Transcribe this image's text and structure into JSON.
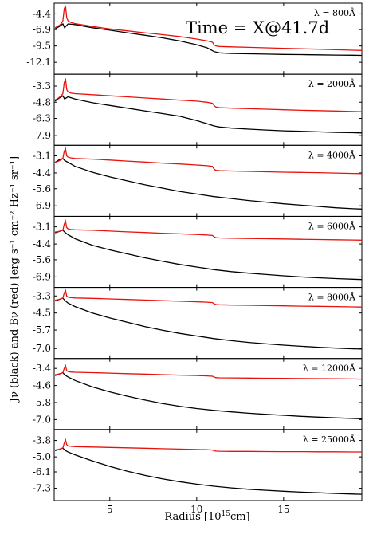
{
  "chart_data": {
    "type": "line",
    "title": "Time = X@41.7d",
    "xlabel": "Radius [10",
    "xlabel_sup": "15",
    "xlabel_tail": "cm]",
    "ylabel": "Jν (black) and Bν (red) [erg s⁻¹ cm⁻² Hz⁻¹ sr⁻¹]",
    "xlim": [
      1.8,
      19.5
    ],
    "xticks": [
      5,
      10,
      15
    ],
    "grid": false,
    "series_colors": {
      "J": "#000000",
      "B": "#e8120c"
    },
    "panels": [
      {
        "label": "λ = 800Å",
        "ylim": [
          -14.0,
          -2.7
        ],
        "yticks": [
          "-4.4",
          "-6.9",
          "-9.5",
          "-12.1"
        ],
        "ytick_values": [
          -4.4,
          -6.9,
          -9.5,
          -12.1
        ],
        "B": {
          "x": [
            1.85,
            2.05,
            2.2,
            2.3,
            2.38,
            2.45,
            2.52,
            2.6,
            2.75,
            3,
            4,
            5,
            6,
            7,
            8,
            9,
            10,
            10.6,
            10.9,
            11.0,
            11.1,
            11.3,
            12,
            13,
            14,
            15,
            16,
            17,
            18,
            19,
            19.5
          ],
          "y": [
            -6.6,
            -6.3,
            -6.0,
            -5.5,
            -3.6,
            -3.1,
            -5.0,
            -5.5,
            -5.75,
            -5.95,
            -6.4,
            -6.8,
            -7.1,
            -7.4,
            -7.7,
            -8.0,
            -8.4,
            -8.7,
            -8.9,
            -9.3,
            -9.5,
            -9.58,
            -9.65,
            -9.72,
            -9.8,
            -9.88,
            -9.95,
            -10.02,
            -10.1,
            -10.18,
            -10.22
          ]
        },
        "J": {
          "x": [
            1.85,
            2.1,
            2.3,
            2.4,
            2.6,
            3,
            4,
            5,
            6,
            7,
            8,
            9,
            10,
            10.6,
            11.0,
            11.3,
            12,
            13,
            14,
            15,
            16,
            17,
            18,
            19,
            19.5
          ],
          "y": [
            -6.8,
            -6.4,
            -6.0,
            -6.6,
            -6.0,
            -6.1,
            -6.6,
            -7.0,
            -7.4,
            -7.8,
            -8.2,
            -8.7,
            -9.3,
            -9.8,
            -10.4,
            -10.6,
            -10.7,
            -10.75,
            -10.8,
            -10.85,
            -10.88,
            -10.92,
            -10.95,
            -10.98,
            -11.0
          ]
        }
      },
      {
        "label": "λ = 2000Å",
        "ylim": [
          -8.8,
          -2.2
        ],
        "yticks": [
          "-3.3",
          "-4.8",
          "-6.3",
          "-7.9"
        ],
        "ytick_values": [
          -3.3,
          -4.8,
          -6.3,
          -7.9
        ],
        "B": {
          "x": [
            1.85,
            2.05,
            2.2,
            2.3,
            2.38,
            2.45,
            2.52,
            2.6,
            2.75,
            3,
            4,
            5,
            6,
            7,
            8,
            9,
            10,
            10.6,
            10.9,
            11.0,
            11.1,
            11.3,
            12,
            13,
            14,
            15,
            16,
            17,
            18,
            19,
            19.5
          ],
          "y": [
            -4.6,
            -4.4,
            -4.2,
            -4.0,
            -3.0,
            -2.6,
            -3.6,
            -3.85,
            -3.95,
            -4.0,
            -4.1,
            -4.2,
            -4.3,
            -4.4,
            -4.5,
            -4.6,
            -4.7,
            -4.8,
            -4.9,
            -5.1,
            -5.25,
            -5.3,
            -5.35,
            -5.4,
            -5.45,
            -5.5,
            -5.55,
            -5.58,
            -5.62,
            -5.66,
            -5.68
          ]
        },
        "J": {
          "x": [
            1.85,
            2.1,
            2.3,
            2.4,
            2.6,
            3,
            4,
            5,
            6,
            7,
            8,
            9,
            10,
            10.6,
            11.0,
            11.3,
            12,
            13,
            14,
            15,
            16,
            17,
            18,
            19,
            19.5
          ],
          "y": [
            -4.7,
            -4.4,
            -4.2,
            -4.5,
            -4.3,
            -4.5,
            -4.85,
            -5.1,
            -5.35,
            -5.6,
            -5.85,
            -6.1,
            -6.5,
            -6.8,
            -7.0,
            -7.1,
            -7.2,
            -7.3,
            -7.38,
            -7.45,
            -7.5,
            -7.55,
            -7.6,
            -7.63,
            -7.65
          ]
        }
      },
      {
        "label": "λ = 4000Å",
        "ylim": [
          -7.7,
          -2.3
        ],
        "yticks": [
          "-3.1",
          "-4.4",
          "-5.6",
          "-6.9"
        ],
        "ytick_values": [
          -3.1,
          -4.4,
          -5.6,
          -6.9
        ],
        "B": {
          "x": [
            1.85,
            2.05,
            2.2,
            2.3,
            2.38,
            2.45,
            2.52,
            2.6,
            2.75,
            3,
            4,
            5,
            6,
            7,
            8,
            9,
            10,
            10.6,
            10.9,
            11.0,
            11.1,
            11.3,
            12,
            13,
            14,
            15,
            16,
            17,
            18,
            19,
            19.5
          ],
          "y": [
            -3.6,
            -3.5,
            -3.4,
            -3.3,
            -2.75,
            -2.55,
            -3.1,
            -3.2,
            -3.25,
            -3.3,
            -3.35,
            -3.42,
            -3.5,
            -3.57,
            -3.65,
            -3.72,
            -3.8,
            -3.85,
            -3.9,
            -4.1,
            -4.2,
            -4.22,
            -4.25,
            -4.28,
            -4.31,
            -4.34,
            -4.36,
            -4.38,
            -4.41,
            -4.44,
            -4.45
          ]
        },
        "J": {
          "x": [
            1.85,
            2.1,
            2.3,
            2.4,
            2.6,
            3,
            4,
            5,
            6,
            7,
            8,
            9,
            10,
            11,
            12,
            13,
            14,
            15,
            16,
            17,
            18,
            19,
            19.5
          ],
          "y": [
            -3.6,
            -3.4,
            -3.3,
            -3.45,
            -3.6,
            -3.9,
            -4.35,
            -4.7,
            -5.0,
            -5.3,
            -5.55,
            -5.8,
            -6.0,
            -6.2,
            -6.35,
            -6.5,
            -6.62,
            -6.75,
            -6.85,
            -6.95,
            -7.05,
            -7.12,
            -7.15
          ]
        }
      },
      {
        "label": "λ = 6000Å",
        "ylim": [
          -7.7,
          -2.3
        ],
        "yticks": [
          "-3.1",
          "-4.4",
          "-5.6",
          "-6.9"
        ],
        "ytick_values": [
          -3.1,
          -4.4,
          -5.6,
          -6.9
        ],
        "B": {
          "x": [
            1.85,
            2.05,
            2.2,
            2.3,
            2.38,
            2.45,
            2.52,
            2.6,
            2.75,
            3,
            4,
            5,
            6,
            7,
            8,
            9,
            10,
            10.6,
            10.9,
            11.0,
            11.1,
            11.3,
            12,
            13,
            14,
            15,
            16,
            17,
            18,
            19,
            19.5
          ],
          "y": [
            -3.5,
            -3.45,
            -3.4,
            -3.35,
            -2.9,
            -2.65,
            -3.15,
            -3.25,
            -3.3,
            -3.32,
            -3.36,
            -3.42,
            -3.48,
            -3.53,
            -3.58,
            -3.63,
            -3.68,
            -3.72,
            -3.75,
            -3.85,
            -3.92,
            -3.94,
            -3.96,
            -3.98,
            -4.0,
            -4.02,
            -4.04,
            -4.06,
            -4.08,
            -4.1,
            -4.11
          ]
        },
        "J": {
          "x": [
            1.85,
            2.1,
            2.3,
            2.4,
            2.6,
            3,
            4,
            5,
            6,
            7,
            8,
            9,
            10,
            11,
            12,
            13,
            14,
            15,
            16,
            17,
            18,
            19,
            19.5
          ],
          "y": [
            -3.55,
            -3.45,
            -3.35,
            -3.5,
            -3.7,
            -4.0,
            -4.5,
            -4.85,
            -5.15,
            -5.45,
            -5.7,
            -5.95,
            -6.15,
            -6.35,
            -6.5,
            -6.62,
            -6.72,
            -6.82,
            -6.9,
            -6.97,
            -7.03,
            -7.08,
            -7.1
          ]
        }
      },
      {
        "label": "λ = 8000Å",
        "ylim": [
          -7.7,
          -2.7
        ],
        "yticks": [
          "-3.3",
          "-4.5",
          "-5.7",
          "-7.0"
        ],
        "ytick_values": [
          -3.3,
          -4.5,
          -5.7,
          -7.0
        ],
        "B": {
          "x": [
            1.85,
            2.05,
            2.2,
            2.3,
            2.38,
            2.45,
            2.52,
            2.6,
            2.75,
            3,
            4,
            5,
            6,
            7,
            8,
            9,
            10,
            10.6,
            10.9,
            11.0,
            11.1,
            11.3,
            12,
            13,
            14,
            15,
            16,
            17,
            18,
            19,
            19.5
          ],
          "y": [
            -3.6,
            -3.55,
            -3.5,
            -3.45,
            -3.1,
            -2.9,
            -3.3,
            -3.38,
            -3.42,
            -3.44,
            -3.47,
            -3.51,
            -3.55,
            -3.59,
            -3.63,
            -3.67,
            -3.71,
            -3.74,
            -3.77,
            -3.85,
            -3.9,
            -3.92,
            -3.94,
            -3.96,
            -3.98,
            -4.0,
            -4.02,
            -4.03,
            -4.05,
            -4.07,
            -4.08
          ]
        },
        "J": {
          "x": [
            1.85,
            2.1,
            2.3,
            2.4,
            2.6,
            3,
            4,
            5,
            6,
            7,
            8,
            9,
            10,
            11,
            12,
            13,
            14,
            15,
            16,
            17,
            18,
            19,
            19.5
          ],
          "y": [
            -3.65,
            -3.55,
            -3.45,
            -3.6,
            -3.8,
            -4.05,
            -4.5,
            -4.85,
            -5.15,
            -5.45,
            -5.7,
            -5.93,
            -6.12,
            -6.3,
            -6.45,
            -6.57,
            -6.67,
            -6.76,
            -6.84,
            -6.91,
            -6.97,
            -7.02,
            -7.04
          ]
        }
      },
      {
        "label": "λ = 12000Å",
        "ylim": [
          -7.7,
          -2.7
        ],
        "yticks": [
          "-3.4",
          "-4.6",
          "-5.8",
          "-7.0"
        ],
        "ytick_values": [
          -3.4,
          -4.6,
          -5.8,
          -7.0
        ],
        "B": {
          "x": [
            1.85,
            2.05,
            2.2,
            2.3,
            2.38,
            2.45,
            2.52,
            2.6,
            2.75,
            3,
            4,
            5,
            6,
            7,
            8,
            9,
            10,
            10.6,
            10.9,
            11.0,
            11.1,
            11.3,
            12,
            13,
            14,
            15,
            16,
            17,
            18,
            19,
            19.5
          ],
          "y": [
            -3.85,
            -3.8,
            -3.75,
            -3.7,
            -3.4,
            -3.2,
            -3.55,
            -3.62,
            -3.65,
            -3.67,
            -3.7,
            -3.73,
            -3.77,
            -3.8,
            -3.84,
            -3.87,
            -3.9,
            -3.93,
            -3.95,
            -4.0,
            -4.05,
            -4.06,
            -4.07,
            -4.08,
            -4.09,
            -4.1,
            -4.11,
            -4.12,
            -4.13,
            -4.14,
            -4.15
          ]
        },
        "J": {
          "x": [
            1.85,
            2.1,
            2.3,
            2.4,
            2.6,
            3,
            4,
            5,
            6,
            7,
            8,
            9,
            10,
            11,
            12,
            13,
            14,
            15,
            16,
            17,
            18,
            19,
            19.5
          ],
          "y": [
            -3.9,
            -3.8,
            -3.7,
            -3.85,
            -4.0,
            -4.25,
            -4.7,
            -5.05,
            -5.35,
            -5.62,
            -5.86,
            -6.06,
            -6.22,
            -6.35,
            -6.46,
            -6.55,
            -6.63,
            -6.7,
            -6.77,
            -6.83,
            -6.88,
            -6.92,
            -6.94
          ]
        }
      },
      {
        "label": "λ = 25000Å",
        "ylim": [
          -8.2,
          -3.0
        ],
        "yticks": [
          "-3.8",
          "-5.0",
          "-6.1",
          "-7.3"
        ],
        "ytick_values": [
          -3.8,
          -5.0,
          -6.1,
          -7.3
        ],
        "B": {
          "x": [
            1.85,
            2.05,
            2.2,
            2.3,
            2.38,
            2.45,
            2.52,
            2.6,
            2.75,
            3,
            4,
            5,
            6,
            7,
            8,
            9,
            10,
            10.6,
            10.9,
            11.0,
            11.1,
            11.3,
            12,
            13,
            14,
            15,
            16,
            17,
            18,
            19,
            19.5
          ],
          "y": [
            -4.5,
            -4.45,
            -4.4,
            -4.35,
            -4.0,
            -3.75,
            -4.1,
            -4.2,
            -4.23,
            -4.25,
            -4.28,
            -4.31,
            -4.34,
            -4.37,
            -4.4,
            -4.43,
            -4.46,
            -4.48,
            -4.5,
            -4.55,
            -4.58,
            -4.59,
            -4.6,
            -4.6,
            -4.61,
            -4.62,
            -4.62,
            -4.63,
            -4.63,
            -4.64,
            -4.64
          ]
        },
        "J": {
          "x": [
            1.85,
            2.1,
            2.3,
            2.4,
            2.6,
            3,
            4,
            5,
            6,
            7,
            8,
            9,
            10,
            11,
            12,
            13,
            14,
            15,
            16,
            17,
            18,
            19,
            19.5
          ],
          "y": [
            -4.55,
            -4.45,
            -4.35,
            -4.5,
            -4.65,
            -4.85,
            -5.3,
            -5.7,
            -6.05,
            -6.35,
            -6.6,
            -6.82,
            -7.0,
            -7.15,
            -7.27,
            -7.37,
            -7.45,
            -7.52,
            -7.58,
            -7.63,
            -7.68,
            -7.72,
            -7.74
          ]
        }
      }
    ]
  }
}
